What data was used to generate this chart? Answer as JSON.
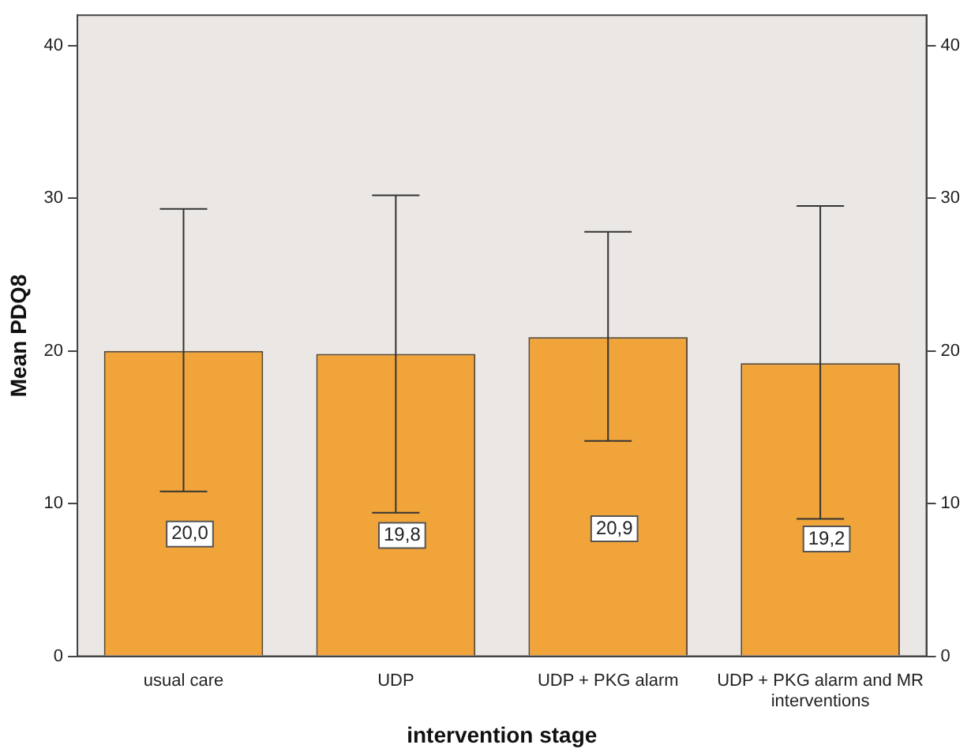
{
  "chart_data": {
    "type": "bar",
    "xlabel": "intervention stage",
    "ylabel": "Mean PDQ8",
    "categories": [
      "usual care",
      "UDP",
      "UDP + PKG alarm",
      "UDP + PKG alarm and MR interventions"
    ],
    "values": [
      20.0,
      19.8,
      20.9,
      19.2
    ],
    "color": "#f0a43a",
    "errors": [
      [
        10.8,
        29.3
      ],
      [
        9.4,
        30.2
      ],
      [
        14.1,
        27.8
      ],
      [
        9.0,
        29.5
      ]
    ],
    "value_labels": [
      "20,0",
      "19,8",
      "20,9",
      "19,2"
    ],
    "ylim": [
      0,
      42
    ],
    "yticks": [
      0,
      10,
      20,
      30,
      40
    ],
    "y2lim": [
      0,
      42
    ],
    "y2ticks": [
      0,
      10,
      20,
      30,
      40
    ],
    "grid": false,
    "legend": false
  }
}
